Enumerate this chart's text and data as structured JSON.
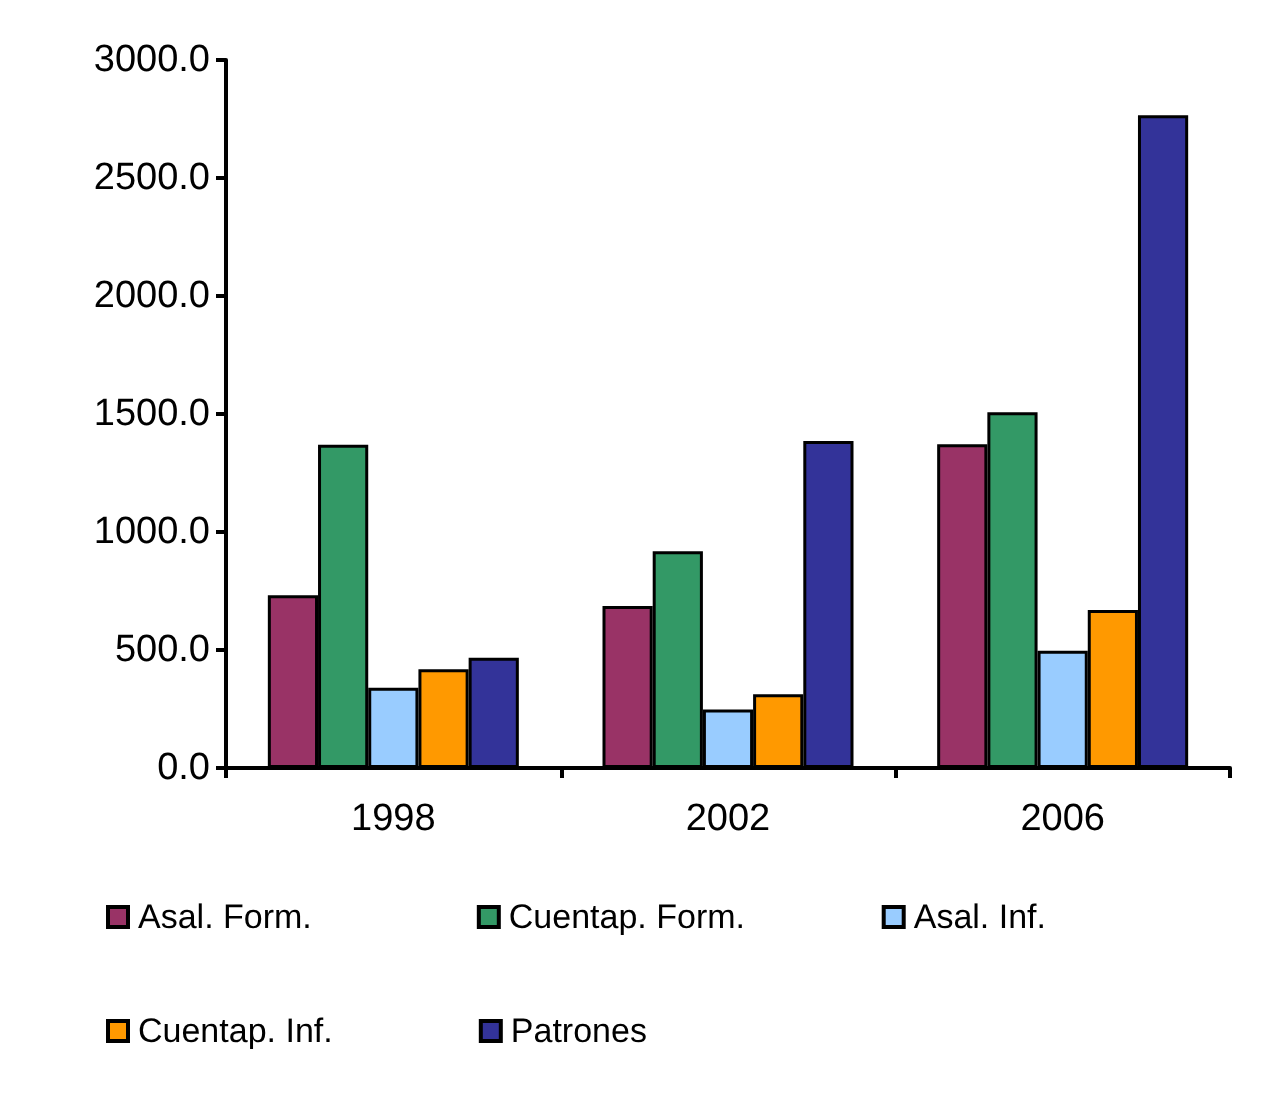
{
  "chart_data": {
    "type": "bar",
    "categories": [
      "1998",
      "2002",
      "2006"
    ],
    "series": [
      {
        "name": "Asal. Form.",
        "color": "#993366",
        "values": [
          732,
          686,
          1372
        ]
      },
      {
        "name": "Cuentap. Form.",
        "color": "#339966",
        "values": [
          1370,
          918,
          1507
        ]
      },
      {
        "name": "Asal. Inf.",
        "color": "#99ccff",
        "values": [
          340,
          248,
          497
        ]
      },
      {
        "name": "Cuentap. Inf.",
        "color": "#ff9900",
        "values": [
          418,
          313,
          669
        ]
      },
      {
        "name": "Patrones",
        "color": "#333399",
        "values": [
          467,
          1386,
          2766
        ]
      }
    ],
    "ylim": [
      0,
      3000
    ],
    "yticks": [
      {
        "value": 0,
        "label": "0.0"
      },
      {
        "value": 500,
        "label": "500.0"
      },
      {
        "value": 1000,
        "label": "1000.0"
      },
      {
        "value": 1500,
        "label": "1500.0"
      },
      {
        "value": 2000,
        "label": "2000.0"
      },
      {
        "value": 2500,
        "label": "2500.0"
      },
      {
        "value": 3000,
        "label": "3000.0"
      }
    ],
    "grid": false,
    "legend": "bottom"
  }
}
